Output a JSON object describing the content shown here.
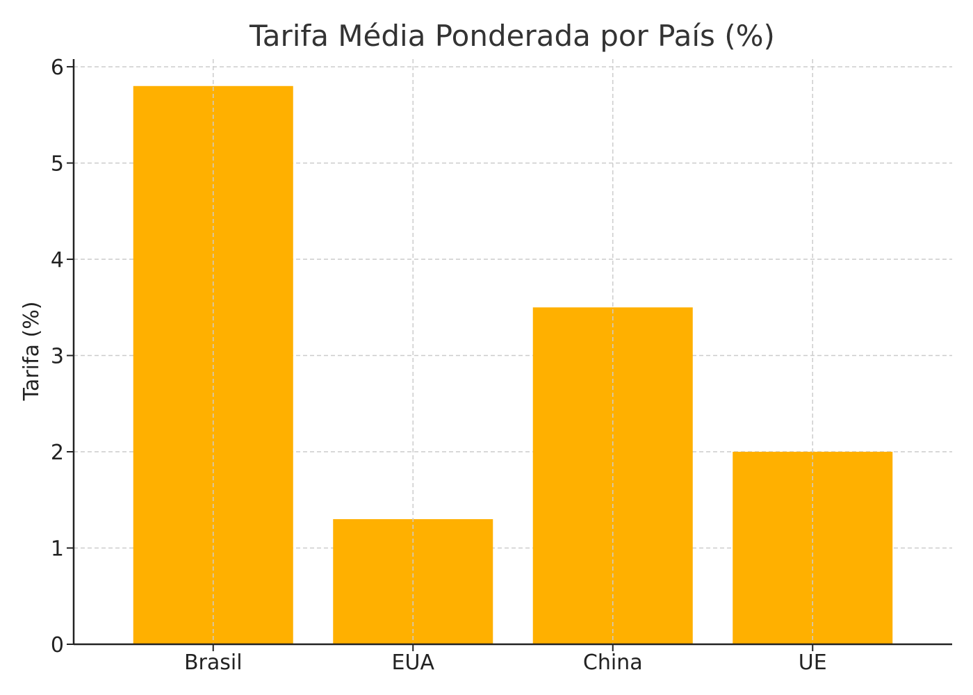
{
  "chart_data": {
    "type": "bar",
    "title": "Tarifa Média Ponderada por País (%)",
    "xlabel": "",
    "ylabel": "Tarifa (%)",
    "categories": [
      "Brasil",
      "EUA",
      "China",
      "UE"
    ],
    "values": [
      5.8,
      1.3,
      3.5,
      2.0
    ],
    "ylim": [
      0,
      6.08
    ],
    "yticks": [
      0,
      1,
      2,
      3,
      4,
      5,
      6
    ],
    "grid": true,
    "legend": "none",
    "bar_color": "#FFB000"
  }
}
